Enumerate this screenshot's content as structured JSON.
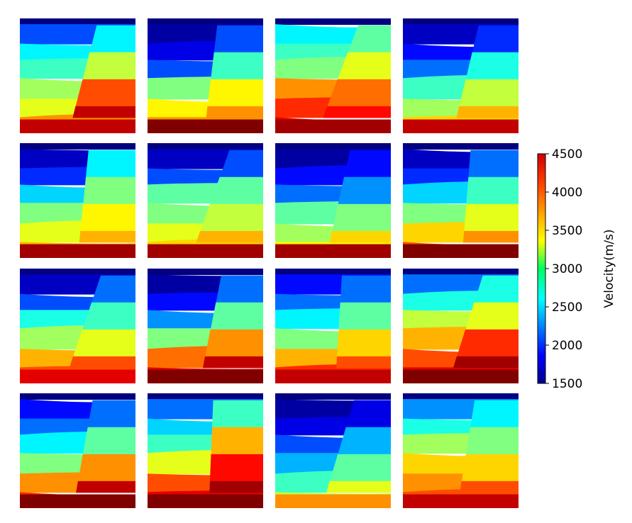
{
  "chart_data": {
    "type": "heatmap",
    "title": "",
    "layout": "4x4 grid of velocity models",
    "colormap": "jet",
    "colorbar": {
      "label": "Velocity(m/s)",
      "range": [
        1500,
        4500
      ],
      "ticks": [
        1500,
        2000,
        2500,
        3000,
        3500,
        4000,
        4500
      ],
      "placement": "right"
    },
    "axes_visible": false,
    "panels": [
      {
        "id": 1,
        "layers": [
          1500,
          2100,
          2600,
          2800,
          3100,
          3300,
          3700,
          4300
        ],
        "fault": true,
        "right_block_values": [
          2600,
          3200,
          3900,
          4300
        ]
      },
      {
        "id": 2,
        "layers": [
          1500,
          1600,
          1800,
          2100,
          3000,
          3400,
          3700,
          4500
        ],
        "fault": true,
        "right_block_values": [
          2100,
          2800,
          3400,
          3700
        ]
      },
      {
        "id": 3,
        "layers": [
          1500,
          2600,
          2800,
          3000,
          3700,
          4000,
          4200,
          4400
        ],
        "fault": true,
        "right_block_values": [
          2900,
          3300,
          3800,
          4100
        ]
      },
      {
        "id": 4,
        "layers": [
          1500,
          1700,
          1900,
          2200,
          2800,
          3100,
          3500,
          4300
        ],
        "fault": true,
        "right_block_values": [
          2000,
          2700,
          3200,
          3600
        ]
      },
      {
        "id": 5,
        "layers": [
          1500,
          1700,
          2000,
          2500,
          3000,
          3300,
          3600,
          4400
        ],
        "fault": true,
        "right_block_values": [
          2600,
          3000,
          3400,
          3600
        ]
      },
      {
        "id": 6,
        "layers": [
          1500,
          1700,
          2100,
          2900,
          3000,
          3300,
          3500,
          4400
        ],
        "fault": true,
        "right_block_values": [
          2100,
          2900,
          3200,
          3600
        ]
      },
      {
        "id": 7,
        "layers": [
          1500,
          1600,
          1900,
          2200,
          2900,
          3100,
          3400,
          4400
        ],
        "fault": true,
        "right_block_values": [
          1900,
          2300,
          3000,
          3500
        ]
      },
      {
        "id": 8,
        "layers": [
          1500,
          1700,
          2000,
          2500,
          3000,
          3500,
          3900,
          4500
        ],
        "fault": true,
        "right_block_values": [
          2200,
          2800,
          3300,
          3700
        ]
      },
      {
        "id": 9,
        "layers": [
          1500,
          1700,
          2100,
          2700,
          3100,
          3600,
          3900,
          4200
        ],
        "fault": true,
        "right_block_values": [
          2200,
          2800,
          3300,
          3900
        ]
      },
      {
        "id": 10,
        "layers": [
          1500,
          1600,
          1900,
          2300,
          3000,
          3800,
          4200,
          4500
        ],
        "fault": true,
        "right_block_values": [
          2200,
          2900,
          3700,
          4300
        ]
      },
      {
        "id": 11,
        "layers": [
          1500,
          1900,
          2200,
          2600,
          3000,
          3600,
          4000,
          4300
        ],
        "fault": true,
        "right_block_values": [
          2200,
          2900,
          3500,
          3900
        ]
      },
      {
        "id": 12,
        "layers": [
          1500,
          2200,
          2700,
          3200,
          3600,
          3900,
          4200,
          4500
        ],
        "fault": true,
        "right_block_values": [
          2700,
          3300,
          4000,
          4400
        ]
      },
      {
        "id": 13,
        "layers": [
          1500,
          1900,
          2200,
          2600,
          3000,
          3700,
          4000,
          4500
        ],
        "fault": true,
        "right_block_values": [
          2200,
          2900,
          3700,
          4300
        ]
      },
      {
        "id": 14,
        "layers": [
          1500,
          2200,
          2500,
          2800,
          3300,
          3900,
          4200,
          4500
        ],
        "fault": true,
        "right_block_values": [
          2800,
          3600,
          4100,
          4400
        ]
      },
      {
        "id": 15,
        "layers": [
          1500,
          1600,
          1800,
          2100,
          2400,
          2800,
          3200,
          3700
        ],
        "fault": true,
        "right_block_values": [
          1800,
          2400,
          2900,
          3300
        ]
      },
      {
        "id": 16,
        "layers": [
          1500,
          2300,
          2700,
          3100,
          3500,
          3700,
          3900,
          4300
        ],
        "fault": true,
        "right_block_values": [
          2600,
          3000,
          3500,
          3900
        ]
      }
    ]
  }
}
